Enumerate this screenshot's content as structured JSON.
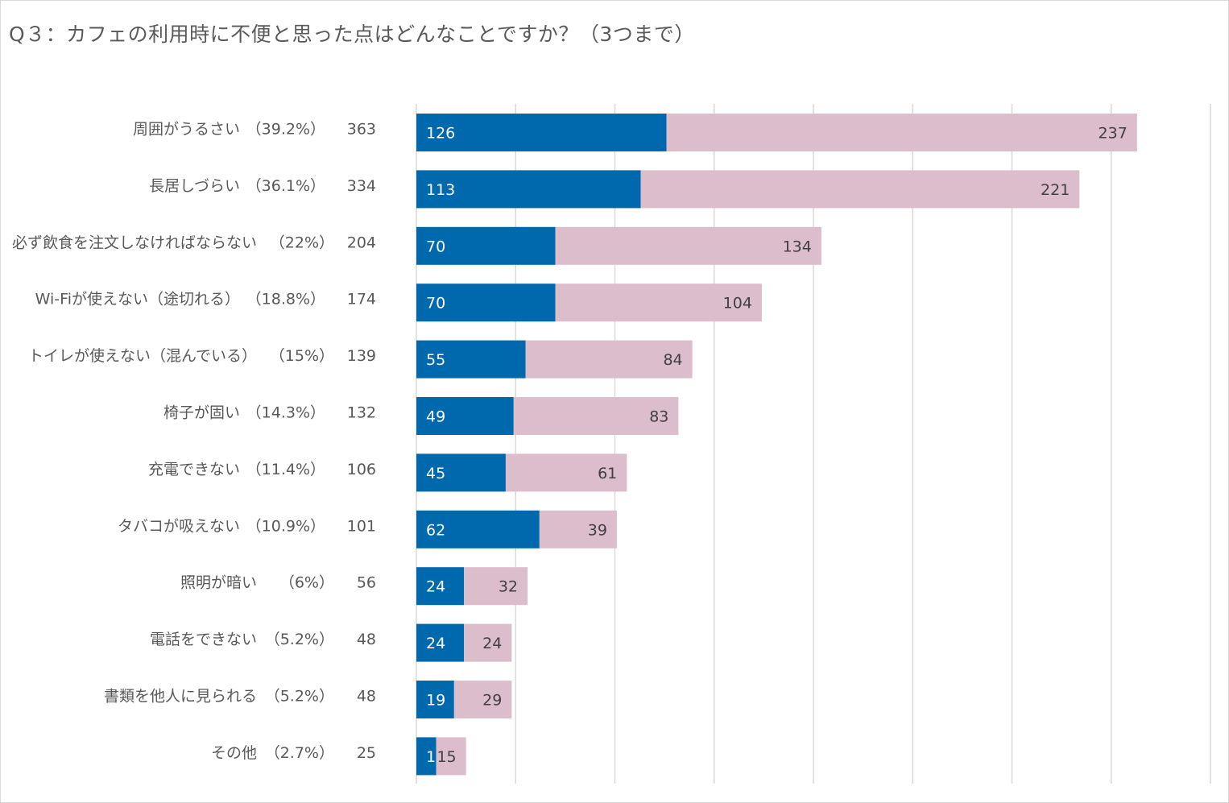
{
  "title": "Q３：カフェの利用時に不便と思った点はどんなことですか？（3つまで）",
  "colors": {
    "series1": "#0069AE",
    "series2": "#DCBDCB",
    "grid": "#d9d9d9",
    "text": "#595959"
  },
  "chart_data": {
    "type": "bar",
    "orientation": "horizontal",
    "stacked": true,
    "title": "Q３：カフェの利用時に不便と思った点はどんなことですか？（3つまで）",
    "xlim": [
      0,
      400
    ],
    "grid": true,
    "legend": "none",
    "categories": [
      "周囲がうるさい",
      "長居しづらい",
      "必ず飲食を注文しなければならない",
      "Wi-Fiが使えない（途切れる）",
      "トイレが使えない（混んでいる）",
      "椅子が固い",
      "充電できない",
      "タバコが吸えない",
      "照明が暗い",
      "電話をできない",
      "書類を他人に見られる",
      "その他"
    ],
    "percent_labels": [
      "（39.2%）",
      "（36.1%）",
      "（22%）",
      "（18.8%）",
      "（15%）",
      "（14.3%）",
      "（11.4%）",
      "（10.9%）",
      "（6%）",
      "（5.2%）",
      "（5.2%）",
      "（2.7%）"
    ],
    "totals": [
      363,
      334,
      204,
      174,
      139,
      132,
      106,
      101,
      56,
      48,
      48,
      25
    ],
    "series": [
      {
        "name": "series1",
        "color": "#0069AE",
        "values": [
          126,
          113,
          70,
          70,
          55,
          49,
          45,
          62,
          24,
          24,
          19,
          10
        ]
      },
      {
        "name": "series2",
        "color": "#DCBDCB",
        "values": [
          237,
          221,
          134,
          104,
          84,
          83,
          61,
          39,
          32,
          24,
          29,
          15
        ]
      }
    ]
  }
}
